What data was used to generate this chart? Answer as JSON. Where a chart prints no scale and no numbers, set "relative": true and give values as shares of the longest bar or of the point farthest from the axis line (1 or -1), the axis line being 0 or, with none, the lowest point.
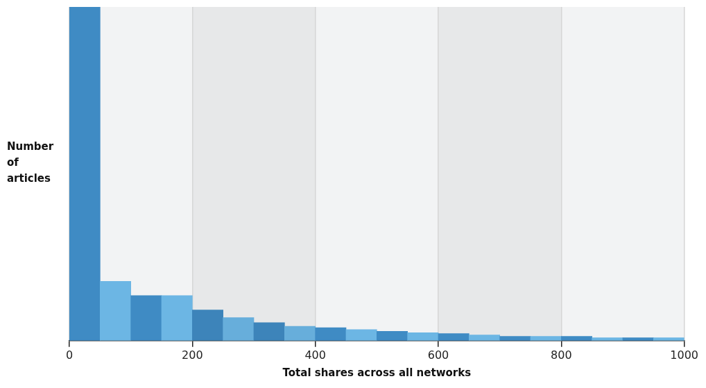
{
  "chart_data": {
    "type": "bar",
    "xlabel": "Total shares across all networks",
    "ylabel": "Number of articles",
    "relative": true,
    "x": [
      25,
      75,
      125,
      175,
      225,
      275,
      325,
      375,
      425,
      475,
      525,
      575,
      625,
      675,
      725,
      775,
      825,
      875,
      925,
      975
    ],
    "values": [
      1,
      0.178,
      0.135,
      0.135,
      0.092,
      0.069,
      0.054,
      0.043,
      0.039,
      0.033,
      0.028,
      0.024,
      0.021,
      0.017,
      0.013,
      0.013,
      0.013,
      0.009,
      0.009,
      0.009
    ],
    "colors": [
      "#3f8bc4",
      "#6cb6e4",
      "#3f8bc4",
      "#6cb6e4",
      "#3d84ba",
      "#67aedb",
      "#3d84ba",
      "#67aedb",
      "#3f8bc4",
      "#6cb6e4",
      "#3f8bc4",
      "#6cb6e4",
      "#3f8bc4",
      "#6cb6e4",
      "#3f8bc4",
      "#6cb6e4",
      "#3f8bc4",
      "#6cb6e4",
      "#3f8bc4",
      "#6cb6e4"
    ],
    "xlim": [
      0,
      1000
    ],
    "xticks": [
      0,
      200,
      400,
      600,
      800,
      1000
    ],
    "grid": "x",
    "legend": false
  }
}
